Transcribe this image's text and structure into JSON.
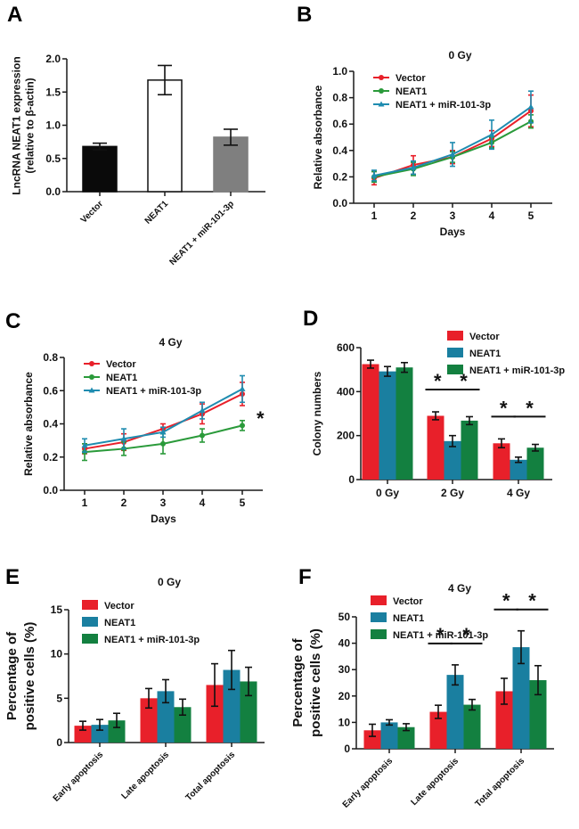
{
  "colors": {
    "vector": "#e8202a",
    "neat1": "#1a7fa0",
    "neat1_mir": "#138040",
    "black_bar": "#0a0a0a",
    "white_bar": "#ffffff",
    "gray_bar": "#7f7f7f",
    "line_vector": "#e8202a",
    "line_neat1": "#2a9a3a",
    "line_neat1_mir": "#1f8cb0"
  },
  "chart_data": [
    {
      "panel": "A",
      "type": "bar",
      "title": "",
      "ylabel": "LncRNA NEAT1 expression (relative to β-actin)",
      "ylabel_lines": [
        "LncRNA NEAT1 expression",
        "(relative to β-actin)"
      ],
      "xlabel": "",
      "categories": [
        "Vector",
        "NEAT1",
        "NEAT1 + miR-101-3p"
      ],
      "values": [
        0.68,
        1.68,
        0.82
      ],
      "errors": [
        0.05,
        0.22,
        0.12
      ],
      "ylim": [
        0,
        2.0
      ],
      "yticks": [
        "0.0",
        "0.5",
        "1.0",
        "1.5",
        "2.0"
      ],
      "ytick_values": [
        0,
        0.5,
        1.0,
        1.5,
        2.0
      ],
      "bar_styles": [
        "black",
        "white",
        "gray"
      ]
    },
    {
      "panel": "B",
      "type": "line",
      "title": "0 Gy",
      "xlabel": "Days",
      "ylabel": "Relative absorbance",
      "x": [
        1,
        2,
        3,
        4,
        5
      ],
      "xticks": [
        "1",
        "2",
        "3",
        "4",
        "5"
      ],
      "ylim": [
        0,
        1.0
      ],
      "yticks": [
        "0.0",
        "0.2",
        "0.4",
        "0.6",
        "0.8",
        "1.0"
      ],
      "ytick_values": [
        0,
        0.2,
        0.4,
        0.6,
        0.8,
        1.0
      ],
      "legend": "top-left",
      "series": [
        {
          "name": "Vector",
          "marker": "circle",
          "values": [
            0.19,
            0.29,
            0.35,
            0.49,
            0.7
          ],
          "errors": [
            0.05,
            0.07,
            0.05,
            0.06,
            0.12
          ]
        },
        {
          "name": "NEAT1",
          "marker": "circle",
          "values": [
            0.2,
            0.26,
            0.35,
            0.46,
            0.62
          ],
          "errors": [
            0.04,
            0.05,
            0.04,
            0.04,
            0.05
          ]
        },
        {
          "name": "NEAT1 + miR-101-3p",
          "marker": "triangle",
          "values": [
            0.21,
            0.27,
            0.37,
            0.52,
            0.73
          ],
          "errors": [
            0.04,
            0.05,
            0.09,
            0.11,
            0.12
          ]
        }
      ]
    },
    {
      "panel": "C",
      "type": "line",
      "title": "4 Gy",
      "xlabel": "Days",
      "ylabel": "Relative absorbance",
      "x": [
        1,
        2,
        3,
        4,
        5
      ],
      "xticks": [
        "1",
        "2",
        "3",
        "4",
        "5"
      ],
      "ylim": [
        0,
        0.8
      ],
      "yticks": [
        "0.0",
        "0.2",
        "0.4",
        "0.6",
        "0.8"
      ],
      "ytick_values": [
        0,
        0.2,
        0.4,
        0.6,
        0.8
      ],
      "legend": "top-left",
      "annotation": "*",
      "series": [
        {
          "name": "Vector",
          "marker": "circle",
          "values": [
            0.25,
            0.29,
            0.37,
            0.46,
            0.58
          ],
          "errors": [
            0.03,
            0.05,
            0.03,
            0.06,
            0.07
          ]
        },
        {
          "name": "NEAT1",
          "marker": "circle",
          "values": [
            0.23,
            0.25,
            0.28,
            0.33,
            0.39
          ],
          "errors": [
            0.05,
            0.04,
            0.06,
            0.04,
            0.03
          ]
        },
        {
          "name": "NEAT1 + miR-101-3p",
          "marker": "triangle",
          "values": [
            0.27,
            0.31,
            0.35,
            0.48,
            0.61
          ],
          "errors": [
            0.04,
            0.06,
            0.03,
            0.05,
            0.08
          ]
        }
      ]
    },
    {
      "panel": "D",
      "type": "bar",
      "title": "",
      "xlabel": "",
      "ylabel": "Colony numbers",
      "categories": [
        "0 Gy",
        "2 Gy",
        "4 Gy"
      ],
      "ylim": [
        0,
        600
      ],
      "yticks": [
        "0",
        "200",
        "400",
        "600"
      ],
      "ytick_values": [
        0,
        200,
        400,
        600
      ],
      "legend": "top-right",
      "series": [
        {
          "name": "Vector",
          "values": [
            525,
            290,
            165
          ],
          "errors": [
            18,
            18,
            20
          ]
        },
        {
          "name": "NEAT1",
          "values": [
            492,
            175,
            90
          ],
          "errors": [
            22,
            25,
            12
          ]
        },
        {
          "name": "NEAT1 + miR-101-3p",
          "values": [
            510,
            268,
            145
          ],
          "errors": [
            22,
            18,
            15
          ]
        }
      ],
      "significance": [
        {
          "category": "2 Gy",
          "pair": [
            "Vector",
            "NEAT1"
          ],
          "label": "*"
        },
        {
          "category": "2 Gy",
          "pair": [
            "NEAT1",
            "NEAT1 + miR-101-3p"
          ],
          "label": "*"
        },
        {
          "category": "4 Gy",
          "pair": [
            "Vector",
            "NEAT1"
          ],
          "label": "*"
        },
        {
          "category": "4 Gy",
          "pair": [
            "NEAT1",
            "NEAT1 + miR-101-3p"
          ],
          "label": "*"
        }
      ]
    },
    {
      "panel": "E",
      "type": "bar",
      "title": "0 Gy",
      "xlabel": "",
      "ylabel": "Percentage of positive cells (%)",
      "ylabel_lines": [
        "Percentage of",
        "positive cells (%)"
      ],
      "categories": [
        "Early apoptosis",
        "Late apoptosis",
        "Total apoptosis"
      ],
      "ylim": [
        0,
        15
      ],
      "yticks": [
        "0",
        "5",
        "10",
        "15"
      ],
      "ytick_values": [
        0,
        5,
        10,
        15
      ],
      "legend": "top-left",
      "series": [
        {
          "name": "Vector",
          "values": [
            1.9,
            5.0,
            6.5
          ],
          "errors": [
            0.5,
            1.1,
            2.4
          ]
        },
        {
          "name": "NEAT1",
          "values": [
            2.0,
            5.8,
            8.2
          ],
          "errors": [
            0.6,
            1.3,
            2.2
          ]
        },
        {
          "name": "NEAT1 + miR-101-3p",
          "values": [
            2.5,
            4.0,
            6.9
          ],
          "errors": [
            0.8,
            0.9,
            1.6
          ]
        }
      ]
    },
    {
      "panel": "F",
      "type": "bar",
      "title": "4 Gy",
      "xlabel": "",
      "ylabel": "Percentage of positive cells (%)",
      "ylabel_lines": [
        "Percentage of",
        "positive cells (%)"
      ],
      "categories": [
        "Early apoptosis",
        "Late apoptosis",
        "Total apoptosis"
      ],
      "ylim": [
        0,
        50
      ],
      "yticks": [
        "0",
        "10",
        "20",
        "30",
        "40",
        "50"
      ],
      "ytick_values": [
        0,
        10,
        20,
        30,
        40,
        50
      ],
      "legend": "top-left",
      "series": [
        {
          "name": "Vector",
          "values": [
            7.0,
            14.0,
            21.8
          ],
          "errors": [
            2.3,
            2.5,
            4.9
          ]
        },
        {
          "name": "NEAT1",
          "values": [
            10.0,
            28.0,
            38.5
          ],
          "errors": [
            1.0,
            3.8,
            6.2
          ]
        },
        {
          "name": "NEAT1 + miR-101-3p",
          "values": [
            8.2,
            16.7,
            26.0
          ],
          "errors": [
            1.3,
            2.0,
            5.5
          ]
        }
      ],
      "significance": [
        {
          "category": "Late apoptosis",
          "pair": [
            "Vector",
            "NEAT1"
          ],
          "label": "*"
        },
        {
          "category": "Late apoptosis",
          "pair": [
            "NEAT1",
            "NEAT1 + miR-101-3p"
          ],
          "label": "*"
        },
        {
          "category": "Total apoptosis",
          "pair": [
            "Vector",
            "NEAT1"
          ],
          "label": "*"
        },
        {
          "category": "Total apoptosis",
          "pair": [
            "NEAT1",
            "NEAT1 + miR-101-3p"
          ],
          "label": "*"
        }
      ]
    }
  ]
}
